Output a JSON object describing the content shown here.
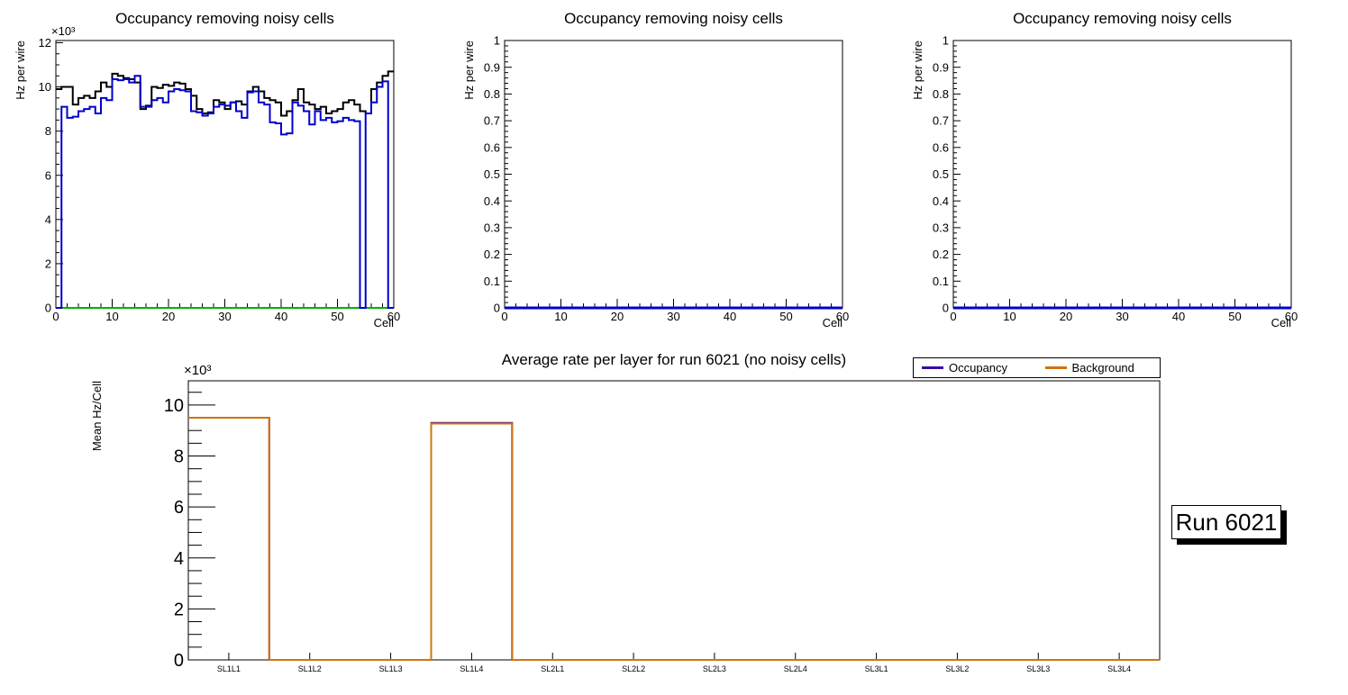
{
  "page": {
    "background": "#ffffff"
  },
  "run_label": "Run 6021",
  "legend": {
    "items": [
      {
        "label": "Occupancy",
        "color": "#3c0c9e"
      },
      {
        "label": "Background",
        "color": "#d2730d"
      }
    ]
  },
  "chart_data": [
    {
      "type": "step-histogram",
      "title": "Occupancy removing noisy cells",
      "xlabel": "Cell",
      "ylabel": "Hz per wire",
      "axis_multiplier": "×10³",
      "xlim": [
        0,
        60
      ],
      "ylim": [
        0,
        12100
      ],
      "x_major": 10,
      "x_minor": 2,
      "y_major": 2000,
      "y_minor": 500,
      "y_tick_divisor": 1000,
      "bins": 60,
      "grid": false,
      "series": [
        {
          "name": "occupancy-all-cells",
          "color": "#000000",
          "line_width": 2,
          "values": [
            9900,
            10000,
            10000,
            9200,
            9500,
            9600,
            9500,
            9800,
            10200,
            10000,
            10600,
            10500,
            10400,
            10350,
            10200,
            9000,
            9150,
            10000,
            9950,
            10100,
            10050,
            10200,
            10150,
            9900,
            9600,
            9000,
            8800,
            8850,
            9400,
            9300,
            9000,
            9300,
            9350,
            9200,
            9800,
            10000,
            9800,
            9500,
            9400,
            9300,
            8700,
            8900,
            9400,
            9900,
            9300,
            9200,
            9000,
            9100,
            8800,
            8900,
            9000,
            9300,
            9400,
            9200,
            8900,
            8800,
            9900,
            10200,
            10500,
            10700
          ]
        },
        {
          "name": "zero-baseline",
          "color": "#00b300",
          "line_width": 2,
          "values": 0
        },
        {
          "name": "occupancy-no-noisy-cells",
          "color": "#0000cc",
          "line_width": 2,
          "values": [
            0,
            9100,
            8600,
            8650,
            8900,
            9000,
            9100,
            8800,
            9500,
            9400,
            10350,
            10300,
            10350,
            10200,
            10500,
            9100,
            9100,
            9400,
            9500,
            9300,
            9800,
            9900,
            9850,
            9800,
            8900,
            8850,
            8700,
            8800,
            9100,
            9200,
            9150,
            9300,
            8900,
            8600,
            9750,
            9800,
            9300,
            9200,
            8400,
            8350,
            7850,
            7900,
            9300,
            9150,
            8900,
            8300,
            8900,
            8500,
            8600,
            8400,
            8450,
            8600,
            8500,
            8450,
            0,
            8800,
            9300,
            10000,
            10250,
            0
          ]
        }
      ]
    },
    {
      "type": "step-histogram",
      "title": "Occupancy removing noisy cells",
      "xlabel": "Cell",
      "ylabel": "Hz per wire",
      "axis_multiplier": "",
      "xlim": [
        0,
        60
      ],
      "ylim": [
        0,
        1.0
      ],
      "x_major": 10,
      "x_minor": 2,
      "y_major": 0.1,
      "y_minor": 0.02,
      "y_tick_divisor": 1,
      "bins": 60,
      "grid": false,
      "series": [
        {
          "name": "empty-occupancy",
          "color": "#0000cc",
          "line_width": 3,
          "values": 0
        }
      ]
    },
    {
      "type": "step-histogram",
      "title": "Occupancy removing noisy cells",
      "xlabel": "Cell",
      "ylabel": "Hz per wire",
      "axis_multiplier": "",
      "xlim": [
        0,
        60
      ],
      "ylim": [
        0,
        1.0
      ],
      "x_major": 10,
      "x_minor": 2,
      "y_major": 0.1,
      "y_minor": 0.02,
      "y_tick_divisor": 1,
      "bins": 60,
      "grid": false,
      "series": [
        {
          "name": "empty-occupancy",
          "color": "#0000cc",
          "line_width": 3,
          "values": 0
        }
      ]
    },
    {
      "type": "step-histogram",
      "title": "Average rate per layer for run 6021 (no noisy cells)",
      "xlabel": "",
      "ylabel": "Mean Hz/Cell",
      "axis_multiplier": "×10³",
      "categories": [
        "SL1L1",
        "SL1L2",
        "SL1L3",
        "SL1L4",
        "SL2L1",
        "SL2L2",
        "SL2L3",
        "SL2L4",
        "SL3L1",
        "SL3L2",
        "SL3L3",
        "SL3L4"
      ],
      "ylim": [
        0,
        10950
      ],
      "y_major": 2000,
      "y_minor": 500,
      "y_tick_divisor": 1000,
      "grid": false,
      "legend_position": "top-right",
      "series": [
        {
          "name": "Occupancy",
          "color": "#3c0c9e",
          "line_width": 2,
          "values": [
            9500,
            0,
            0,
            9300,
            0,
            0,
            0,
            0,
            0,
            0,
            0,
            0
          ]
        },
        {
          "name": "Background",
          "color": "#d2730d",
          "line_width": 2,
          "values": [
            9500,
            0,
            0,
            9270,
            0,
            0,
            0,
            0,
            0,
            0,
            0,
            0
          ]
        }
      ]
    }
  ]
}
